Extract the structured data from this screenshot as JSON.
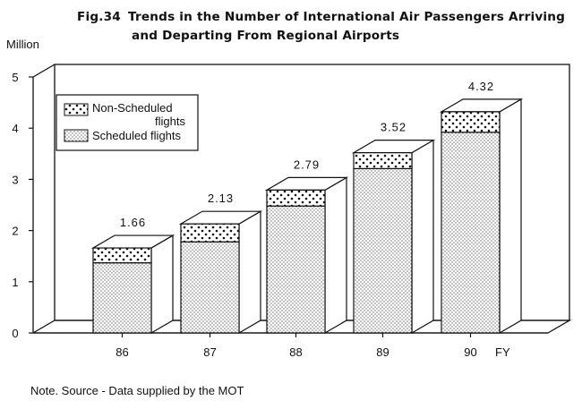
{
  "figure": {
    "number": "Fig.34",
    "title_line1": "Trends in the Number of International Air Passengers Arriving",
    "title_line2": "and Departing From Regional Airports",
    "unit": "Million",
    "note": "Note. Source - Data supplied by the MOT"
  },
  "chart_data": {
    "type": "bar",
    "stacked": true,
    "title": "Trends in the Number of International Air Passengers Arriving and Departing From Regional Airports",
    "xlabel": "FY",
    "ylabel": "Million",
    "categories": [
      "86",
      "87",
      "88",
      "89",
      "90"
    ],
    "yticks": [
      "0",
      "1",
      "2",
      "3",
      "4",
      "5"
    ],
    "ylim": [
      0,
      5
    ],
    "series": [
      {
        "name": "Scheduled flights",
        "values": [
          1.37,
          1.78,
          2.48,
          3.21,
          3.92
        ],
        "pattern": "fine-dots"
      },
      {
        "name": "Non-Scheduled flights",
        "values": [
          0.29,
          0.35,
          0.31,
          0.31,
          0.4
        ],
        "pattern": "coarse-dots"
      }
    ],
    "totals": [
      1.66,
      2.13,
      2.79,
      3.52,
      4.32
    ],
    "total_labels": [
      "1.66",
      "2.13",
      "2.79",
      "3.52",
      "4.32"
    ],
    "legend": {
      "position": "top-left",
      "entries": [
        {
          "line1": "Non-Scheduled",
          "line2": "flights",
          "pattern": "coarse-dots"
        },
        {
          "line1": "Scheduled flights",
          "line2": "",
          "pattern": "fine-dots"
        }
      ]
    },
    "grid": false
  }
}
